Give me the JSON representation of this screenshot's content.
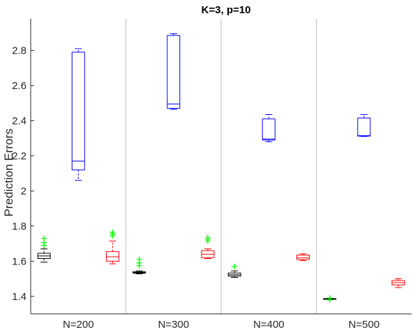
{
  "chart_data": {
    "type": "boxplot",
    "title": "K=3, p=10",
    "xlabel": "",
    "ylabel": "Prediction Errors",
    "ylim": [
      1.3,
      2.98
    ],
    "yticks": [
      "1.4",
      "1.6",
      "1.8",
      "2",
      "2.2",
      "2.4",
      "2.6",
      "2.8"
    ],
    "grid": false,
    "legend": "none",
    "colors": {
      "black": "#000000",
      "blue": "#0000ff",
      "red": "#ff0000",
      "outlier": "#00ff00",
      "separator": "#c8c8c8",
      "axis": "#262626"
    },
    "groups": [
      {
        "label": "N=200",
        "boxes": [
          {
            "color": "black",
            "whisker_low": 1.595,
            "q1": 1.615,
            "median": 1.63,
            "q3": 1.645,
            "whisker_high": 1.67,
            "outliers": [
              1.69,
              1.705,
              1.73
            ]
          },
          {
            "color": "blue",
            "whisker_low": 2.06,
            "q1": 2.12,
            "median": 2.17,
            "q3": 2.79,
            "whisker_high": 2.81,
            "outliers": []
          },
          {
            "color": "red",
            "whisker_low": 1.585,
            "q1": 1.6,
            "median": 1.625,
            "q3": 1.655,
            "whisker_high": 1.715,
            "outliers": [
              1.745,
              1.755,
              1.765
            ]
          }
        ]
      },
      {
        "label": "N=300",
        "boxes": [
          {
            "color": "black",
            "whisker_low": 1.528,
            "q1": 1.532,
            "median": 1.536,
            "q3": 1.54,
            "whisker_high": 1.545,
            "outliers": [
              1.575,
              1.59,
              1.61
            ]
          },
          {
            "color": "blue",
            "whisker_low": 2.465,
            "q1": 2.47,
            "median": 2.495,
            "q3": 2.885,
            "whisker_high": 2.895,
            "outliers": []
          },
          {
            "color": "red",
            "whisker_low": 1.615,
            "q1": 1.62,
            "median": 1.64,
            "q3": 1.66,
            "whisker_high": 1.67,
            "outliers": [
              1.715,
              1.725,
              1.735
            ]
          }
        ]
      },
      {
        "label": "N=400",
        "boxes": [
          {
            "color": "black",
            "whisker_low": 1.508,
            "q1": 1.515,
            "median": 1.523,
            "q3": 1.533,
            "whisker_high": 1.545,
            "outliers": [
              1.57
            ]
          },
          {
            "color": "blue",
            "whisker_low": 2.28,
            "q1": 2.29,
            "median": 2.295,
            "q3": 2.41,
            "whisker_high": 2.435,
            "outliers": []
          },
          {
            "color": "red",
            "whisker_low": 1.603,
            "q1": 1.61,
            "median": 1.62,
            "q3": 1.635,
            "whisker_high": 1.642,
            "outliers": []
          }
        ]
      },
      {
        "label": "N=500",
        "boxes": [
          {
            "color": "black",
            "whisker_low": 1.383,
            "q1": 1.385,
            "median": 1.386,
            "q3": 1.387,
            "whisker_high": 1.389,
            "outliers": [
              1.38,
              1.39
            ]
          },
          {
            "color": "blue",
            "whisker_low": 2.31,
            "q1": 2.312,
            "median": 2.315,
            "q3": 2.415,
            "whisker_high": 2.435,
            "outliers": []
          },
          {
            "color": "red",
            "whisker_low": 1.45,
            "q1": 1.465,
            "median": 1.478,
            "q3": 1.49,
            "whisker_high": 1.5,
            "outliers": []
          }
        ]
      }
    ]
  }
}
